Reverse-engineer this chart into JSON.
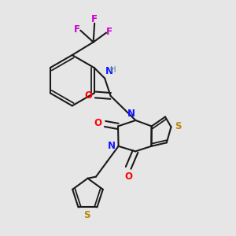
{
  "bg_color": "#e6e6e6",
  "bond_color": "#1a1a1a",
  "bond_width": 1.5,
  "N_color": "#1414ff",
  "O_color": "#ff0000",
  "S_color": "#b8860b",
  "F_color": "#cc00cc",
  "H_color": "#4a9090",
  "font_size": 8.5,
  "fig_size": [
    3.0,
    3.0
  ],
  "dpi": 100,
  "xlim": [
    0.0,
    1.0
  ],
  "ylim": [
    0.0,
    1.0
  ]
}
